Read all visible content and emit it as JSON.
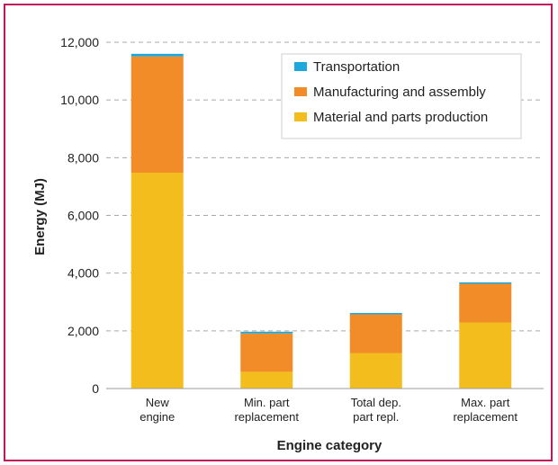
{
  "chart_data": {
    "type": "bar",
    "stacked": true,
    "categories": [
      [
        "New",
        "engine"
      ],
      [
        "Min. part",
        "replacement"
      ],
      [
        "Total dep.",
        "part repl."
      ],
      [
        "Max. part",
        "replacement"
      ]
    ],
    "series": [
      {
        "name": "Material and parts production",
        "color": "#f2bd1d",
        "values": [
          7480,
          580,
          1230,
          2290
        ]
      },
      {
        "name": "Manufacturing and assembly",
        "color": "#f28c28",
        "values": [
          4030,
          1330,
          1340,
          1340
        ]
      },
      {
        "name": "Transportation",
        "color": "#1ea7dc",
        "values": [
          90,
          60,
          50,
          50
        ]
      }
    ],
    "legend_order": [
      "Transportation",
      "Manufacturing and assembly",
      "Material and parts production"
    ],
    "legend_position": "top-right",
    "xlabel": "Engine category",
    "ylabel": "Energy  (MJ)",
    "ylim": [
      0,
      12000
    ],
    "yticks": [
      0,
      2000,
      4000,
      6000,
      8000,
      10000,
      12000
    ],
    "ytick_labels": [
      "0",
      "2,000",
      "4,000",
      "6,000",
      "8,000",
      "10,000",
      "12,000"
    ],
    "grid": "dashed horizontal"
  }
}
